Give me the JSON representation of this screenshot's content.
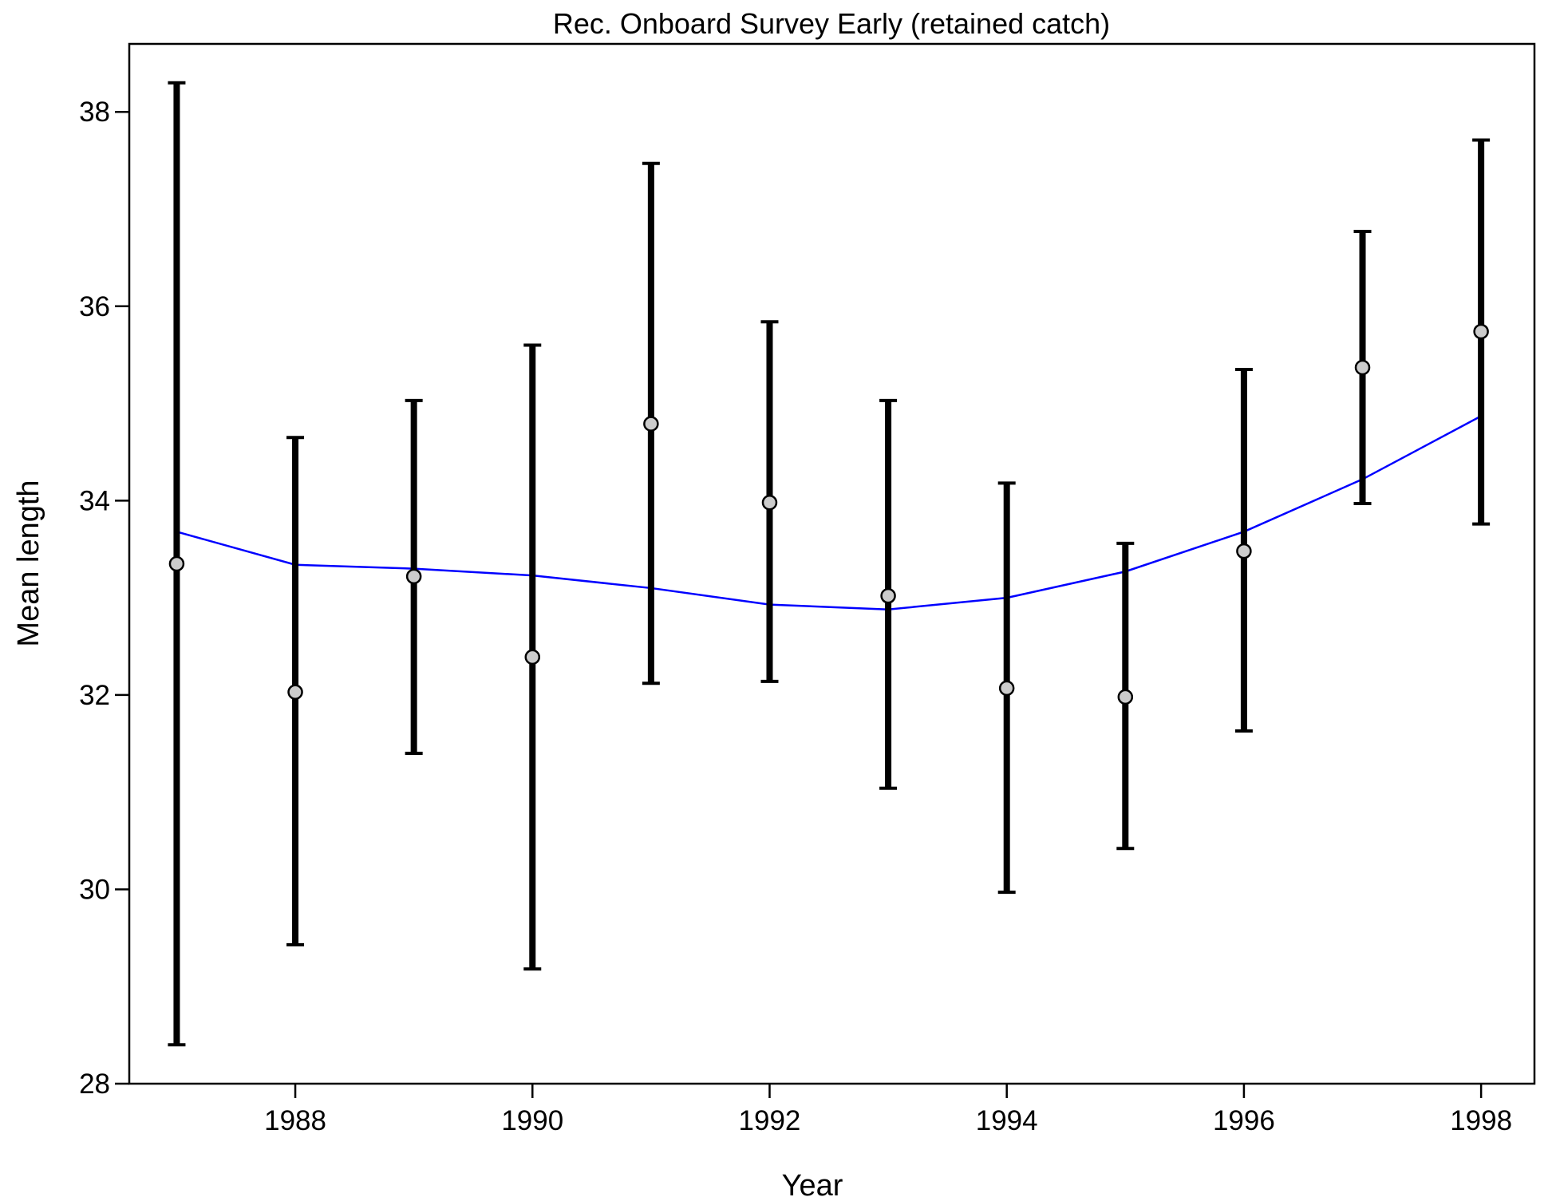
{
  "chart_data": {
    "type": "line",
    "title": "Rec. Onboard Survey Early (retained catch)",
    "xlabel": "Year",
    "ylabel": "Mean length",
    "xlim": [
      1986.6,
      1998.45
    ],
    "ylim": [
      28,
      38.7
    ],
    "x_ticks": [
      1988,
      1990,
      1992,
      1994,
      1996,
      1998
    ],
    "y_ticks": [
      28,
      30,
      32,
      34,
      36,
      38
    ],
    "grid": false,
    "observed": {
      "x": [
        1987,
        1988,
        1989,
        1990,
        1991,
        1992,
        1993,
        1994,
        1995,
        1996,
        1997,
        1998
      ],
      "y": [
        33.35,
        32.03,
        33.22,
        32.39,
        34.79,
        33.98,
        33.02,
        32.07,
        31.98,
        33.48,
        35.37,
        35.74
      ],
      "lower": [
        28.4,
        29.43,
        31.4,
        29.18,
        32.12,
        32.14,
        31.04,
        29.97,
        30.42,
        31.63,
        33.97,
        33.76
      ],
      "upper": [
        38.3,
        34.65,
        35.03,
        35.6,
        37.47,
        35.84,
        35.03,
        34.18,
        33.56,
        35.35,
        36.77,
        37.71
      ],
      "marker_color": "#cccccc",
      "errorbar_color": "#000000"
    },
    "expected": {
      "x": [
        1987,
        1988,
        1989,
        1990,
        1991,
        1992,
        1993,
        1994,
        1995,
        1996,
        1997,
        1998
      ],
      "y": [
        33.68,
        33.34,
        33.3,
        33.23,
        33.1,
        32.93,
        32.88,
        33.0,
        33.27,
        33.68,
        34.22,
        34.87
      ],
      "color": "#0000ff"
    }
  }
}
